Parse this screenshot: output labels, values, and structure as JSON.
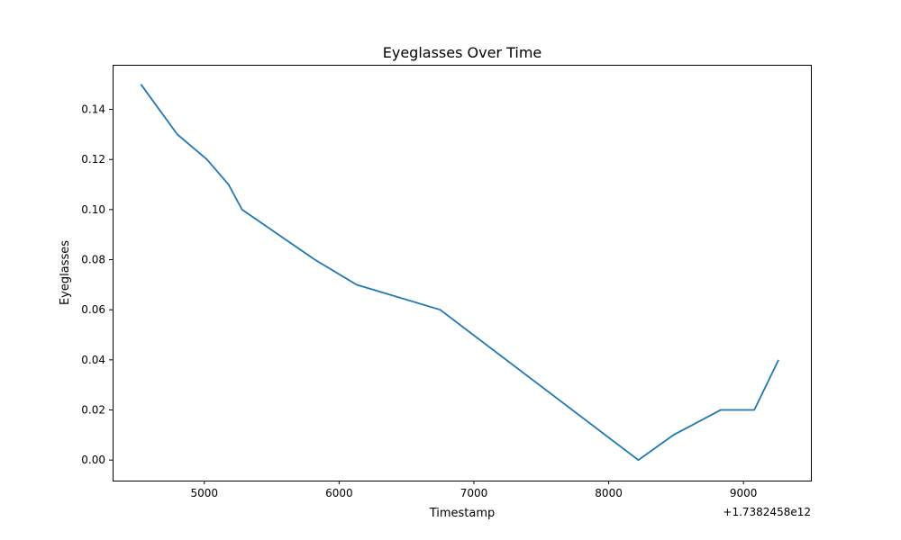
{
  "chart_data": {
    "type": "line",
    "title": "Eyeglasses Over Time",
    "xlabel": "Timestamp",
    "ylabel": "Eyeglasses",
    "x_offset_label": "+1.7382458e12",
    "xlim": [
      4320,
      9500
    ],
    "ylim": [
      -0.0082,
      0.1578
    ],
    "x_ticks": [
      5000,
      6000,
      7000,
      8000,
      9000
    ],
    "y_ticks": [
      0.0,
      0.02,
      0.04,
      0.06,
      0.08,
      0.1,
      0.12,
      0.14
    ],
    "y_tick_labels": [
      "0.00",
      "0.02",
      "0.04",
      "0.06",
      "0.08",
      "0.10",
      "0.12",
      "0.14"
    ],
    "grid": false,
    "series": [
      {
        "color": "#1f77b4",
        "x": [
          4530,
          4800,
          5020,
          5180,
          5280,
          5820,
          6130,
          6750,
          8220,
          8480,
          8830,
          9080,
          9260
        ],
        "y": [
          0.15,
          0.13,
          0.12,
          0.11,
          0.1,
          0.08,
          0.07,
          0.06,
          0.0,
          0.01,
          0.02,
          0.02,
          0.04
        ]
      }
    ]
  }
}
